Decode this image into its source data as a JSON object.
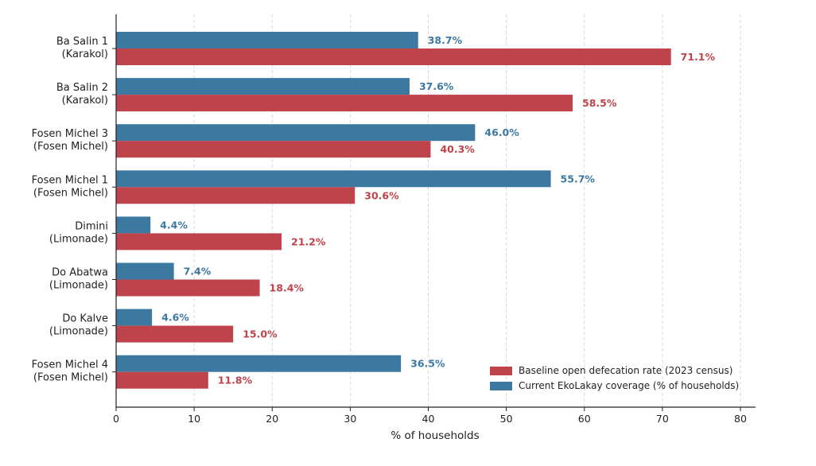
{
  "chart_data": {
    "type": "bar",
    "orientation": "horizontal",
    "categories": [
      [
        "Ba Salin 1",
        "(Karakol)"
      ],
      [
        "Ba Salin 2",
        "(Karakol)"
      ],
      [
        "Fosen Michel 3",
        "(Fosen Michel)"
      ],
      [
        "Fosen Michel 1",
        "(Fosen Michel)"
      ],
      [
        "Dimini",
        "(Limonade)"
      ],
      [
        "Do Abatwa",
        "(Limonade)"
      ],
      [
        "Do Kalve",
        "(Limonade)"
      ],
      [
        "Fosen Michel 4",
        "(Fosen Michel)"
      ]
    ],
    "series": [
      {
        "name": "Current EkoLakay coverage (% of households)",
        "color": "#3d78a0",
        "values": [
          38.7,
          37.6,
          46.0,
          55.7,
          4.4,
          7.4,
          4.6,
          36.5
        ],
        "labels": [
          "38.7%",
          "37.6%",
          "46.0%",
          "55.7%",
          "4.4%",
          "7.4%",
          "4.6%",
          "36.5%"
        ]
      },
      {
        "name": "Baseline open defecation rate (2023 census)",
        "color": "#bf434b",
        "values": [
          71.1,
          58.5,
          40.3,
          30.6,
          21.2,
          18.4,
          15.0,
          11.8
        ],
        "labels": [
          "71.1%",
          "58.5%",
          "40.3%",
          "30.6%",
          "21.2%",
          "18.4%",
          "15.0%",
          "11.8%"
        ]
      }
    ],
    "xlabel": "% of households",
    "xlim": [
      0,
      80
    ],
    "xticks": [
      0,
      10,
      20,
      30,
      40,
      50,
      60,
      70,
      80
    ],
    "xtick_labels": [
      "0",
      "10",
      "20",
      "30",
      "40",
      "50",
      "60",
      "70",
      "80"
    ],
    "grid": "vertical dashed",
    "legend": {
      "placement": "lower-right",
      "entries": [
        "Baseline open defecation rate (2023 census)",
        "Current EkoLakay coverage (% of households)"
      ]
    }
  }
}
